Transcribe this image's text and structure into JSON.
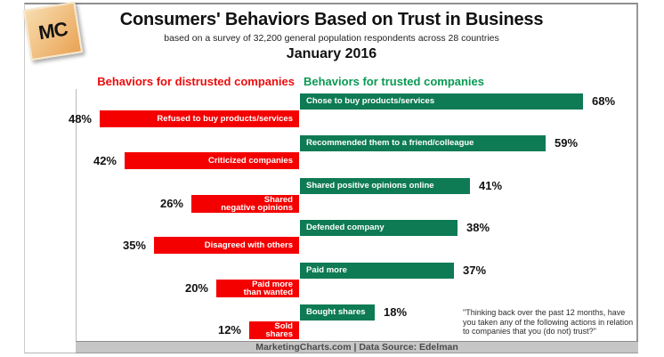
{
  "logo": {
    "text": "MC"
  },
  "header": {
    "title": "Consumers' Behaviors Based on Trust in Business",
    "subtitle": "based on a survey of 32,200 general population respondents across 28 countries",
    "date": "January 2016"
  },
  "legend": {
    "distrusted": "Behaviors for distrusted companies",
    "trusted": "Behaviors for trusted companies"
  },
  "colors": {
    "distrusted_red": "#f40000",
    "trusted_green": "#0e7b54",
    "legend_red_text": "#ee0b0b",
    "legend_green_text": "#089a53",
    "footer_bar": "#c6c6c6"
  },
  "annotation": {
    "quote": "\"Thinking back over the past 12 months, have you taken any of the following actions in relation to companies that you (do not) trust?\""
  },
  "footer": {
    "text": "MarketingCharts.com | Data Source: Edelman"
  },
  "chart_data": {
    "type": "bar",
    "orientation": "horizontal-diverging",
    "unit": "%",
    "title": "Consumers' Behaviors Based on Trust in Business",
    "subtitle": "based on a survey of 32,200 general population respondents across 28 countries",
    "date_label": "January 2016",
    "legend": [
      {
        "label": "Behaviors for distrusted companies",
        "color": "#f40000",
        "side": "left"
      },
      {
        "label": "Behaviors for trusted companies",
        "color": "#0e7b54",
        "side": "right"
      }
    ],
    "value_range": [
      0,
      100
    ],
    "grid": false,
    "pairs": [
      {
        "trusted": {
          "label": "Chose to buy products/services",
          "value": 68
        },
        "distrusted": {
          "label": "Refused to buy products/services",
          "value": 48
        }
      },
      {
        "trusted": {
          "label": "Recommended them to a friend/colleague",
          "value": 59
        },
        "distrusted": {
          "label": "Criticized companies",
          "value": 42
        }
      },
      {
        "trusted": {
          "label": "Shared positive opinions online",
          "value": 41
        },
        "distrusted": {
          "label": "Shared\nnegative opinions",
          "value": 26
        }
      },
      {
        "trusted": {
          "label": "Defended company",
          "value": 38
        },
        "distrusted": {
          "label": "Disagreed with others",
          "value": 35
        }
      },
      {
        "trusted": {
          "label": "Paid more",
          "value": 37
        },
        "distrusted": {
          "label": "Paid more\nthan wanted",
          "value": 20
        }
      },
      {
        "trusted": {
          "label": "Bought shares",
          "value": 18
        },
        "distrusted": {
          "label": "Sold\nshares",
          "value": 12
        }
      }
    ],
    "annotation": "\"Thinking back over the past 12 months, have you taken any of the following actions in relation to companies that you (do not) trust?\""
  }
}
